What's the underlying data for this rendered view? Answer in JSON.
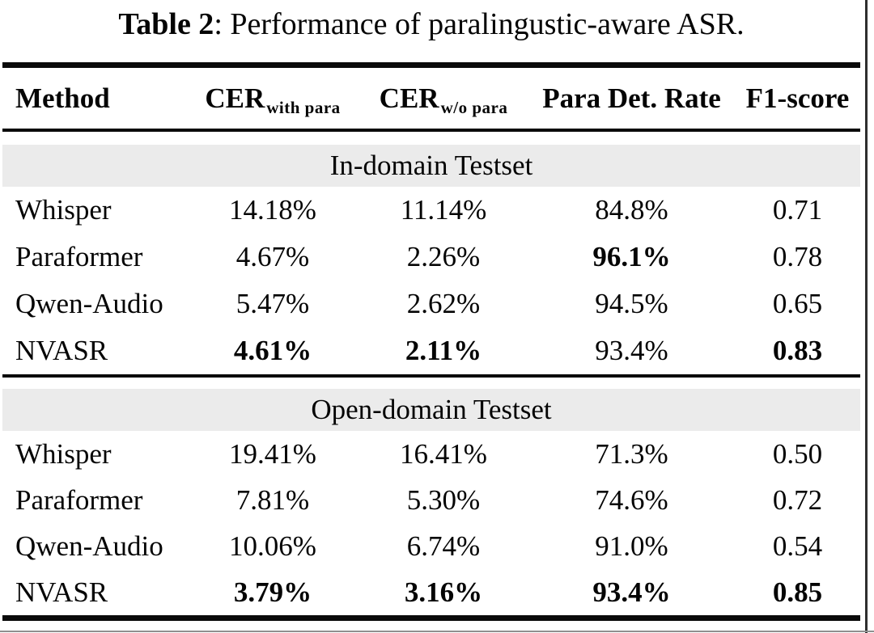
{
  "caption": {
    "label": "Table 2",
    "text": ": Performance of paralingustic-aware ASR."
  },
  "columns": [
    {
      "label": "Method"
    },
    {
      "label": "CER",
      "sub": "with para"
    },
    {
      "label": "CER",
      "sub": "w/o para"
    },
    {
      "label": "Para Det. Rate"
    },
    {
      "label": "F1-score"
    }
  ],
  "sections": [
    {
      "header": "In-domain Testset",
      "rows": [
        {
          "method": "Whisper",
          "cells": [
            {
              "v": "14.18%"
            },
            {
              "v": "11.14%"
            },
            {
              "v": "84.8%"
            },
            {
              "v": "0.71"
            }
          ]
        },
        {
          "method": "Paraformer",
          "cells": [
            {
              "v": "4.67%"
            },
            {
              "v": "2.26%"
            },
            {
              "v": "96.1%",
              "bold": true
            },
            {
              "v": "0.78"
            }
          ]
        },
        {
          "method": "Qwen-Audio",
          "cells": [
            {
              "v": "5.47%"
            },
            {
              "v": "2.62%"
            },
            {
              "v": "94.5%"
            },
            {
              "v": "0.65"
            }
          ]
        },
        {
          "method": "NVASR",
          "cells": [
            {
              "v": "4.61%",
              "bold": true
            },
            {
              "v": "2.11%",
              "bold": true
            },
            {
              "v": "93.4%"
            },
            {
              "v": "0.83",
              "bold": true
            }
          ]
        }
      ]
    },
    {
      "header": "Open-domain Testset",
      "rows": [
        {
          "method": "Whisper",
          "cells": [
            {
              "v": "19.41%"
            },
            {
              "v": "16.41%"
            },
            {
              "v": "71.3%"
            },
            {
              "v": "0.50"
            }
          ]
        },
        {
          "method": "Paraformer",
          "cells": [
            {
              "v": "7.81%"
            },
            {
              "v": "5.30%"
            },
            {
              "v": "74.6%"
            },
            {
              "v": "0.72"
            }
          ]
        },
        {
          "method": "Qwen-Audio",
          "cells": [
            {
              "v": "10.06%"
            },
            {
              "v": "6.74%"
            },
            {
              "v": "91.0%"
            },
            {
              "v": "0.54"
            }
          ]
        },
        {
          "method": "NVASR",
          "cells": [
            {
              "v": "3.79%",
              "bold": true
            },
            {
              "v": "3.16%",
              "bold": true
            },
            {
              "v": "93.4%",
              "bold": true
            },
            {
              "v": "0.85",
              "bold": true
            }
          ]
        }
      ]
    }
  ],
  "colors": {
    "section_band_bg": "#ebebeb",
    "rule": "#0a0a0a",
    "text": "#050505",
    "right_border": "#2e2e2e",
    "bottom_edge": "#8f8f8f"
  }
}
